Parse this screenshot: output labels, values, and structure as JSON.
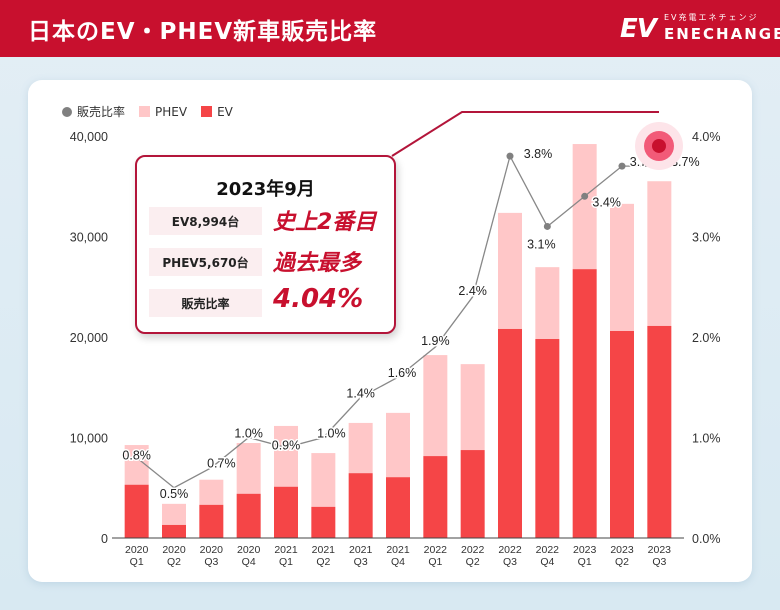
{
  "header": {
    "title": "日本のEV・PHEV新車販売比率",
    "logo_mark": "EV",
    "logo_subtitle": "EV充電エネチェンジ",
    "logo_name": "ENECHANGE",
    "background_color": "#c8102e"
  },
  "legend": {
    "ratio_label": "販売比率",
    "phev_label": "PHEV",
    "ev_label": "EV"
  },
  "callout": {
    "title": "2023年9月",
    "rows": [
      {
        "label": "EV8,994台",
        "value": "史上2番目"
      },
      {
        "label": "PHEV5,670台",
        "value": "過去最多"
      },
      {
        "label": "販売比率",
        "value": "4.04%"
      }
    ]
  },
  "chart_data": {
    "type": "bar",
    "stacked": true,
    "title": "日本のEV・PHEV新車販売比率",
    "categories": [
      "2020 Q1",
      "2020 Q2",
      "2020 Q3",
      "2020 Q4",
      "2021 Q1",
      "2021 Q2",
      "2021 Q3",
      "2021 Q4",
      "2022 Q1",
      "2022 Q2",
      "2022 Q3",
      "2022 Q4",
      "2023 Q1",
      "2023 Q2",
      "2023 Q3"
    ],
    "category_lines": [
      [
        "2020",
        "Q1"
      ],
      [
        "2020",
        "Q2"
      ],
      [
        "2020",
        "Q3"
      ],
      [
        "2020",
        "Q4"
      ],
      [
        "2021",
        "Q1"
      ],
      [
        "2021",
        "Q2"
      ],
      [
        "2021",
        "Q3"
      ],
      [
        "2021",
        "Q4"
      ],
      [
        "2022",
        "Q1"
      ],
      [
        "2022",
        "Q2"
      ],
      [
        "2022",
        "Q3"
      ],
      [
        "2022",
        "Q4"
      ],
      [
        "2023",
        "Q1"
      ],
      [
        "2023",
        "Q2"
      ],
      [
        "2023",
        "Q3"
      ]
    ],
    "series": [
      {
        "name": "EV",
        "color": "#f54547",
        "values": [
          5300,
          1300,
          3300,
          4400,
          5100,
          3100,
          6450,
          6050,
          8150,
          8750,
          20800,
          19800,
          26750,
          20600,
          21100
        ]
      },
      {
        "name": "PHEV",
        "color": "#ffc7c8",
        "values": [
          3950,
          2100,
          2500,
          5050,
          6050,
          5350,
          5000,
          6400,
          10050,
          8550,
          11550,
          7150,
          12450,
          12650,
          14400
        ]
      },
      {
        "name": "販売比率",
        "type": "line",
        "axis": "right",
        "color": "#808080",
        "values": [
          0.8,
          0.5,
          0.7,
          1.0,
          0.9,
          1.0,
          1.4,
          1.6,
          1.9,
          2.4,
          3.8,
          3.1,
          3.4,
          3.7,
          3.7
        ],
        "labels": [
          "0.8%",
          "0.5%",
          "0.7%",
          "1.0%",
          "0.9%",
          "1.0%",
          "1.4%",
          "1.6%",
          "1.9%",
          "2.4%",
          "3.8%",
          "3.1%",
          "3.4%",
          "3.7%",
          "3.7%"
        ]
      }
    ],
    "highlight_point": {
      "label": "2023年9月",
      "value": 4.04
    },
    "ylim": [
      0,
      40000
    ],
    "yticks": [
      0,
      10000,
      20000,
      30000,
      40000
    ],
    "ytick_labels": [
      "0",
      "10,000",
      "20,000",
      "30,000",
      "40,000"
    ],
    "y2lim": [
      0,
      4.0
    ],
    "y2ticks": [
      0,
      1,
      2,
      3,
      4
    ],
    "y2tick_labels": [
      "0.0%",
      "1.0%",
      "2.0%",
      "3.0%",
      "4.0%"
    ],
    "xlabel": "",
    "ylabel": "",
    "y2label": "",
    "grid": false,
    "legend_position": "top-left"
  }
}
